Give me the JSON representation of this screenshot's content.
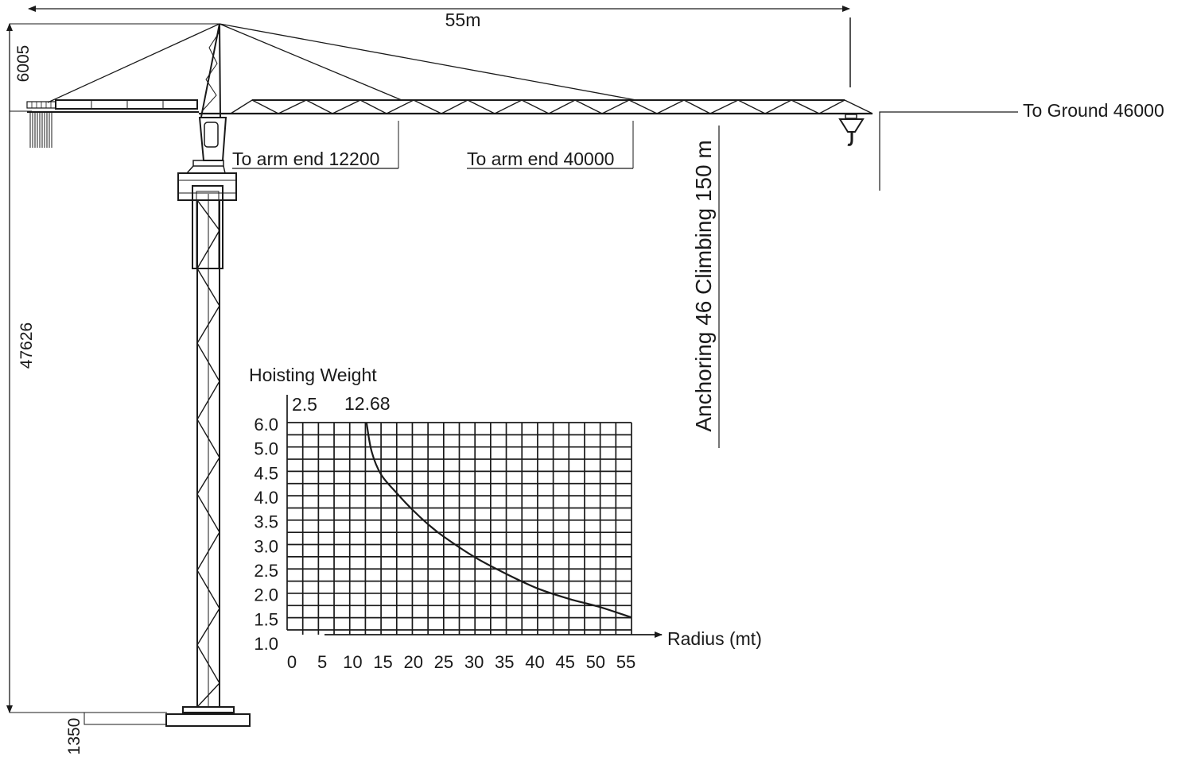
{
  "dimensions": {
    "jib_span": "55m",
    "top_height": "6005",
    "tower_height": "47626",
    "base_height": "1350",
    "to_ground": "To Ground 46000",
    "arm_end_1": "To arm end 12200",
    "arm_end_2": "To arm end 40000",
    "anchoring": "Anchoring 46  Climbing 150 m"
  },
  "chart_data": {
    "type": "line",
    "title": "Hoisting Weight",
    "xlabel": "Radius (mt)",
    "ylabel": "",
    "x_ticks": [
      "0",
      "5",
      "10",
      "15",
      "20",
      "25",
      "30",
      "35",
      "40",
      "45",
      "50",
      "55"
    ],
    "y_ticks": [
      "1.0",
      "1.5",
      "2.0",
      "2.5",
      "3.0",
      "3.5",
      "4.0",
      "4.5",
      "5.0",
      "6.0"
    ],
    "xlim": [
      0,
      55
    ],
    "ylim": [
      1.0,
      6.0
    ],
    "top_labels": [
      "2.5",
      "12.68"
    ],
    "grid": true,
    "series": [
      {
        "x": [
          12.68,
          13.5,
          15,
          17.5,
          20,
          22.5,
          25,
          30,
          35,
          40,
          45,
          50,
          55
        ],
        "y": [
          6.0,
          5.3,
          4.75,
          4.3,
          3.9,
          3.55,
          3.25,
          2.75,
          2.35,
          2.0,
          1.75,
          1.55,
          1.3
        ]
      }
    ]
  },
  "colors": {
    "ink": "#1a1a1a",
    "background": "#ffffff"
  }
}
